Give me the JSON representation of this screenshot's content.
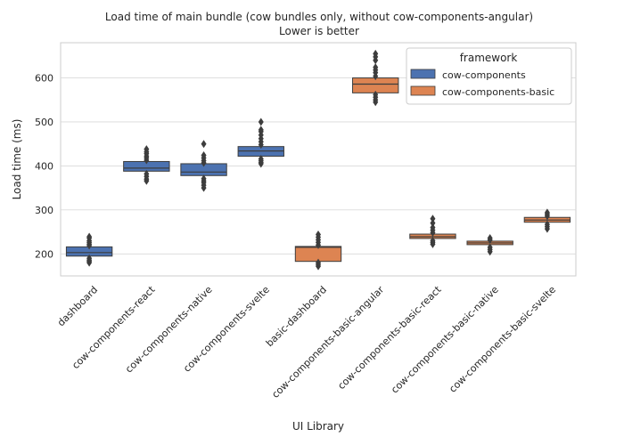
{
  "chart_data": {
    "type": "boxen",
    "title": "Load time of main bundle (cow bundles only, without cow-components-angular)",
    "subtitle": "Lower is better",
    "xlabel": "UI Library",
    "ylabel": "Load time (ms)",
    "ylim": [
      150,
      680
    ],
    "yticks": [
      200,
      300,
      400,
      500,
      600
    ],
    "grid": true,
    "legend": {
      "title": "framework",
      "placement": "top-right",
      "entries": [
        {
          "name": "cow-components",
          "color": "#4c72b0"
        },
        {
          "name": "cow-components-basic",
          "color": "#dd8452"
        }
      ]
    },
    "categories": [
      "dashboard",
      "cow-components-react",
      "cow-components-native",
      "cow-components-svelte",
      "basic-dashboard",
      "cow-components-basic-angular",
      "cow-components-basic-react",
      "cow-components-basic-native",
      "cow-components-basic-svelte"
    ],
    "boxes": [
      {
        "category": "dashboard",
        "framework": "cow-components",
        "q1": 195,
        "median": 203,
        "q3": 216,
        "outliers": [
          180,
          183,
          186,
          190,
          219,
          222,
          226,
          230,
          236,
          239
        ]
      },
      {
        "category": "cow-components-react",
        "framework": "cow-components",
        "q1": 388,
        "median": 395,
        "q3": 410,
        "outliers": [
          366,
          370,
          376,
          382,
          413,
          418,
          422,
          428,
          432,
          438
        ]
      },
      {
        "category": "cow-components-native",
        "framework": "cow-components",
        "q1": 378,
        "median": 386,
        "q3": 405,
        "outliers": [
          350,
          356,
          362,
          366,
          371,
          407,
          412,
          418,
          424,
          450
        ]
      },
      {
        "category": "cow-components-svelte",
        "framework": "cow-components",
        "q1": 422,
        "median": 434,
        "q3": 444,
        "outliers": [
          405,
          408,
          412,
          416,
          448,
          455,
          462,
          470,
          478,
          482,
          500
        ]
      },
      {
        "category": "basic-dashboard",
        "framework": "cow-components-basic",
        "q1": 183,
        "median": 215,
        "q3": 217,
        "outliers": [
          172,
          176,
          180,
          220,
          226,
          232,
          238,
          244
        ]
      },
      {
        "category": "cow-components-basic-angular",
        "framework": "cow-components-basic",
        "q1": 566,
        "median": 586,
        "q3": 600,
        "outliers": [
          545,
          550,
          556,
          562,
          604,
          612,
          618,
          624,
          640,
          648,
          655
        ]
      },
      {
        "category": "cow-components-basic-react",
        "framework": "cow-components-basic",
        "q1": 235,
        "median": 239,
        "q3": 245,
        "outliers": [
          222,
          226,
          230,
          248,
          254,
          260,
          270,
          280
        ]
      },
      {
        "category": "cow-components-basic-native",
        "framework": "cow-components-basic",
        "q1": 221,
        "median": 225,
        "q3": 229,
        "outliers": [
          205,
          210,
          215,
          232,
          236
        ]
      },
      {
        "category": "cow-components-basic-svelte",
        "framework": "cow-components-basic",
        "q1": 272,
        "median": 277,
        "q3": 283,
        "outliers": [
          257,
          262,
          267,
          286,
          290,
          294
        ]
      }
    ]
  }
}
